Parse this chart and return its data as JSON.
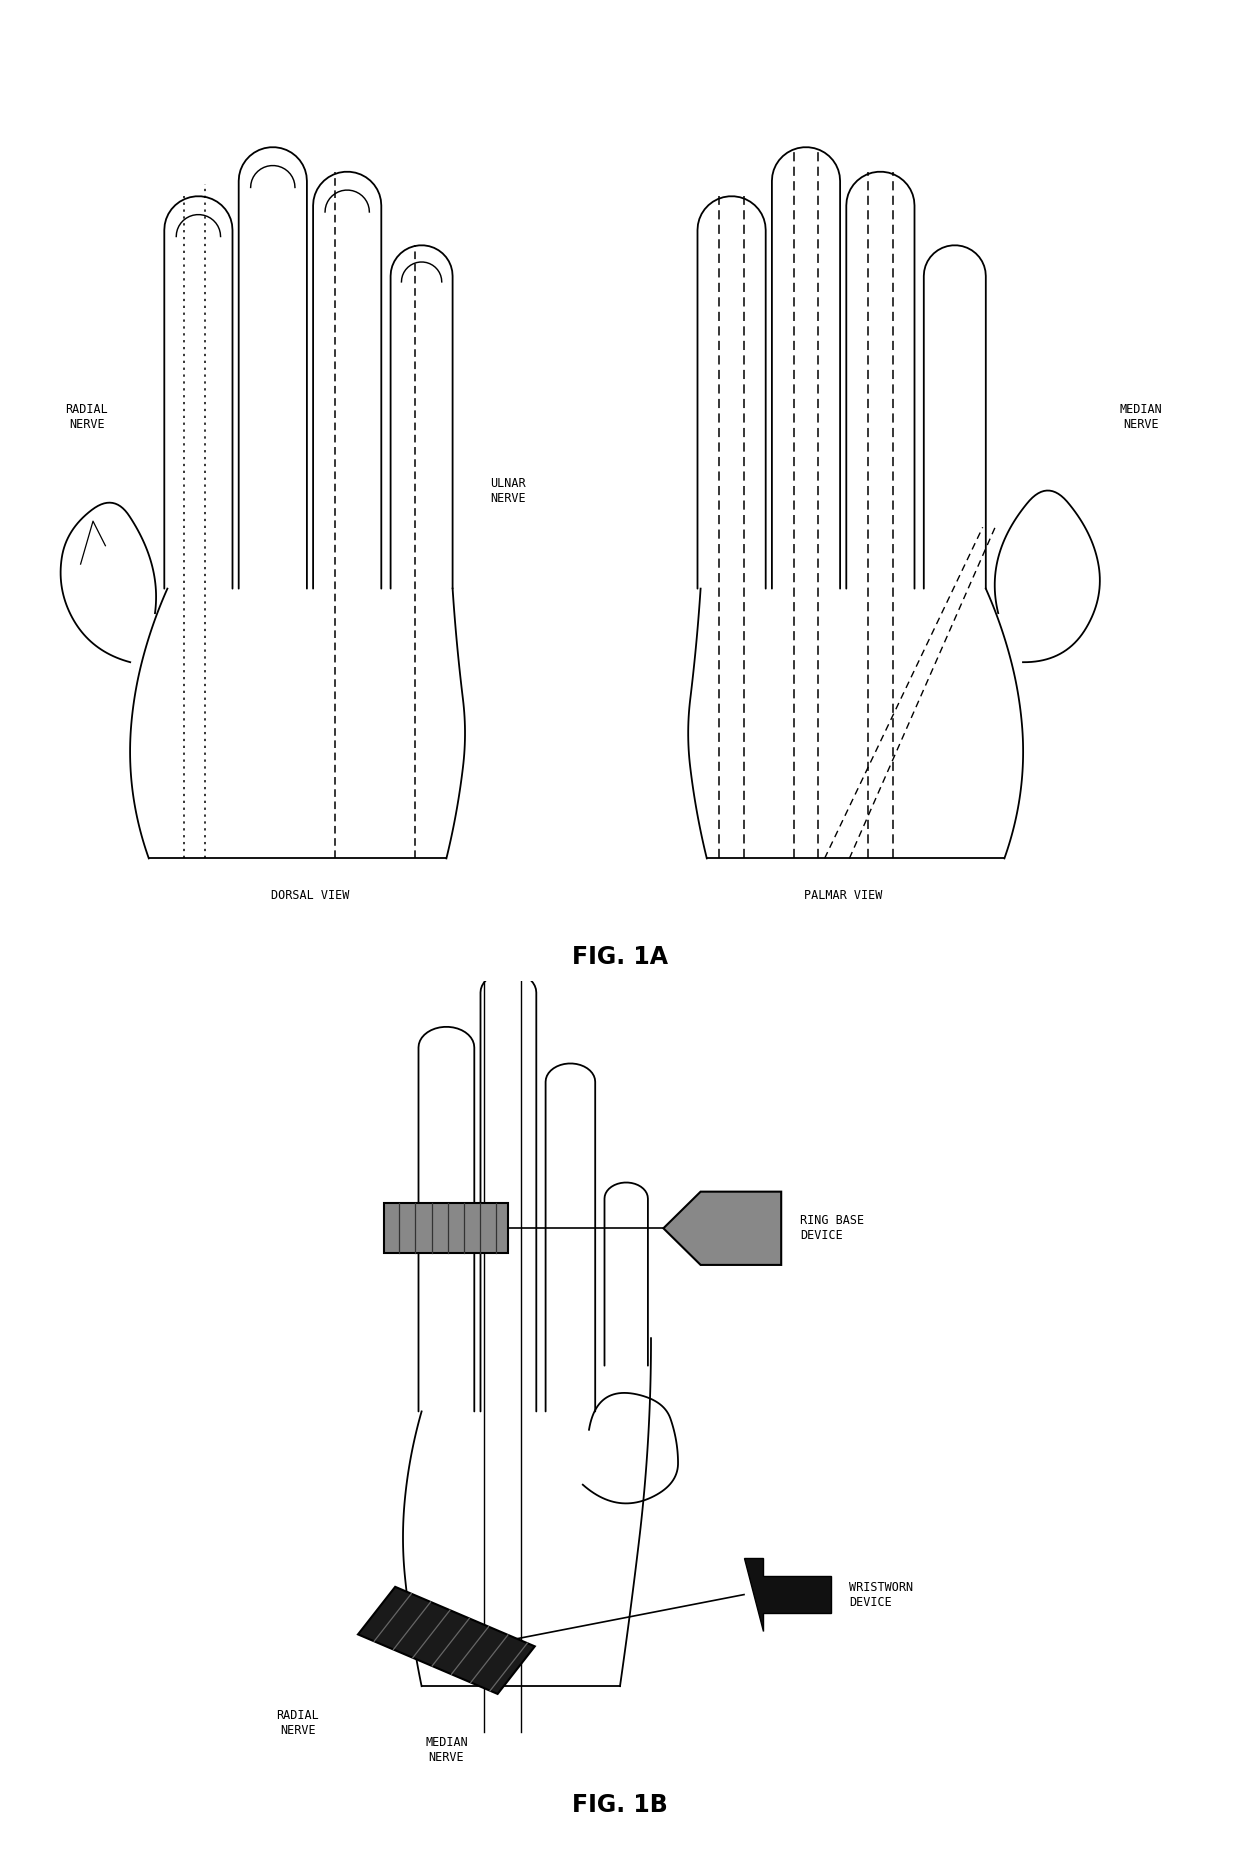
{
  "background_color": "#ffffff",
  "fig_width": 12.4,
  "fig_height": 18.51,
  "title_1a": "FIG. 1A",
  "title_1b": "FIG. 1B",
  "label_dorsal": "DORSAL VIEW",
  "label_palmar": "PALMAR VIEW",
  "label_radial_top": "RADIAL\nNERVE",
  "label_ulnar": "ULNAR\nNERVE",
  "label_median_top": "MEDIAN\nNERVE",
  "label_radial_b": "RADIAL\nNERVE",
  "label_median_b": "MEDIAN\nNERVE",
  "label_ring": "RING BASE\nDEVICE",
  "label_wrist": "WRISTWORN\nDEVICE",
  "lc": "#000000",
  "ring_color": "#888888",
  "wrist_color": "#1a1a1a"
}
